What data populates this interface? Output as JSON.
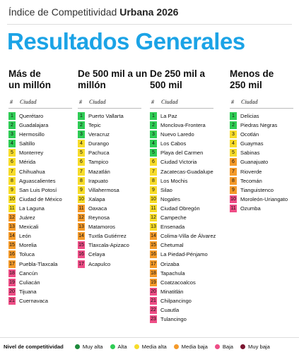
{
  "header": {
    "kicker": "Índice de Competitividad",
    "kicker_bold": "Urbana 2026",
    "title": "Resultados Generales"
  },
  "legend": {
    "title": "Nivel de competitividad",
    "items": [
      {
        "label": "Muy alta",
        "color": "#1e8a3c"
      },
      {
        "label": "Alta",
        "color": "#2fcc55"
      },
      {
        "label": "Media alta",
        "color": "#f7dc2a"
      },
      {
        "label": "Media baja",
        "color": "#f49a2a"
      },
      {
        "label": "Baja",
        "color": "#ee4d86"
      },
      {
        "label": "Muy baja",
        "color": "#7b1530"
      }
    ]
  },
  "columns": [
    {
      "heading": "Más de un millón",
      "rank_header": "#",
      "city_header": "Ciudad",
      "rows": [
        {
          "rank": 1,
          "city": "Querétaro",
          "level": 1
        },
        {
          "rank": 2,
          "city": "Guadalajara",
          "level": 1
        },
        {
          "rank": 3,
          "city": "Hermosillo",
          "level": 1
        },
        {
          "rank": 4,
          "city": "Saltillo",
          "level": 1
        },
        {
          "rank": 5,
          "city": "Monterrey",
          "level": 2
        },
        {
          "rank": 6,
          "city": "Mérida",
          "level": 2
        },
        {
          "rank": 7,
          "city": "Chihuahua",
          "level": 2
        },
        {
          "rank": 8,
          "city": "Aguascalientes",
          "level": 2
        },
        {
          "rank": 9,
          "city": "San Luis Potosí",
          "level": 2
        },
        {
          "rank": 10,
          "city": "Ciudad de México",
          "level": 2
        },
        {
          "rank": 11,
          "city": "La Laguna",
          "level": 2
        },
        {
          "rank": 12,
          "city": "Juárez",
          "level": 3
        },
        {
          "rank": 13,
          "city": "Mexicali",
          "level": 3
        },
        {
          "rank": 14,
          "city": "León",
          "level": 3
        },
        {
          "rank": 15,
          "city": "Morelia",
          "level": 3
        },
        {
          "rank": 16,
          "city": "Toluca",
          "level": 3
        },
        {
          "rank": 17,
          "city": "Puebla-Tlaxcala",
          "level": 3
        },
        {
          "rank": 18,
          "city": "Cancún",
          "level": 4
        },
        {
          "rank": 19,
          "city": "Culiacán",
          "level": 4
        },
        {
          "rank": 20,
          "city": "Tijuana",
          "level": 4
        },
        {
          "rank": 21,
          "city": "Cuernavaca",
          "level": 4
        }
      ]
    },
    {
      "heading": "De 500 mil a un millón",
      "rank_header": "#",
      "city_header": "Ciudad",
      "rows": [
        {
          "rank": 1,
          "city": "Puerto Vallarta",
          "level": 1
        },
        {
          "rank": 2,
          "city": "Tepic",
          "level": 1
        },
        {
          "rank": 3,
          "city": "Veracruz",
          "level": 1
        },
        {
          "rank": 4,
          "city": "Durango",
          "level": 2
        },
        {
          "rank": 5,
          "city": "Pachuca",
          "level": 2
        },
        {
          "rank": 6,
          "city": "Tampico",
          "level": 2
        },
        {
          "rank": 7,
          "city": "Mazatlán",
          "level": 2
        },
        {
          "rank": 8,
          "city": "Irapuato",
          "level": 2
        },
        {
          "rank": 9,
          "city": "Villahermosa",
          "level": 2
        },
        {
          "rank": 10,
          "city": "Xalapa",
          "level": 2
        },
        {
          "rank": 11,
          "city": "Oaxaca",
          "level": 3
        },
        {
          "rank": 12,
          "city": "Reynosa",
          "level": 3
        },
        {
          "rank": 13,
          "city": "Matamoros",
          "level": 3
        },
        {
          "rank": 14,
          "city": "Tuxtla Gutiérrez",
          "level": 3
        },
        {
          "rank": 15,
          "city": "Tlaxcala-Apizaco",
          "level": 4
        },
        {
          "rank": 16,
          "city": "Celaya",
          "level": 4
        },
        {
          "rank": 17,
          "city": "Acapulco",
          "level": 4
        }
      ]
    },
    {
      "heading": "De 250 mil a 500 mil",
      "rank_header": "#",
      "city_header": "Ciudad",
      "rows": [
        {
          "rank": 1,
          "city": "La Paz",
          "level": 1
        },
        {
          "rank": 2,
          "city": "Monclova-Frontera",
          "level": 1
        },
        {
          "rank": 3,
          "city": "Nuevo Laredo",
          "level": 1
        },
        {
          "rank": 4,
          "city": "Los Cabos",
          "level": 1
        },
        {
          "rank": 5,
          "city": "Playa del Carmen",
          "level": 1
        },
        {
          "rank": 6,
          "city": "Ciudad Victoria",
          "level": 2
        },
        {
          "rank": 7,
          "city": "Zacatecas-Guadalupe",
          "level": 2
        },
        {
          "rank": 8,
          "city": "Los Mochis",
          "level": 2
        },
        {
          "rank": 9,
          "city": "Silao",
          "level": 2
        },
        {
          "rank": 10,
          "city": "Nogales",
          "level": 2
        },
        {
          "rank": 11,
          "city": "Ciudad Obregón",
          "level": 2
        },
        {
          "rank": 12,
          "city": "Campeche",
          "level": 2
        },
        {
          "rank": 13,
          "city": "Ensenada",
          "level": 2
        },
        {
          "rank": 14,
          "city": "Colima-Villa de Álvarez",
          "level": 3
        },
        {
          "rank": 15,
          "city": "Chetumal",
          "level": 3
        },
        {
          "rank": 16,
          "city": "La Piedad-Pénjamo",
          "level": 3
        },
        {
          "rank": 17,
          "city": "Orizaba",
          "level": 3
        },
        {
          "rank": 18,
          "city": "Tapachula",
          "level": 3
        },
        {
          "rank": 19,
          "city": "Coatzacoalcos",
          "level": 3
        },
        {
          "rank": 20,
          "city": "Minatitlán",
          "level": 4
        },
        {
          "rank": 21,
          "city": "Chilpancingo",
          "level": 4
        },
        {
          "rank": 22,
          "city": "Cuautla",
          "level": 4
        },
        {
          "rank": 23,
          "city": "Tulancingo",
          "level": 4
        }
      ]
    },
    {
      "heading": "Menos de 250 mil",
      "rank_header": "#",
      "city_header": "Ciudad",
      "rows": [
        {
          "rank": 1,
          "city": "Delicias",
          "level": 1
        },
        {
          "rank": 2,
          "city": "Piedras Negras",
          "level": 1
        },
        {
          "rank": 3,
          "city": "Ocotlán",
          "level": 2
        },
        {
          "rank": 4,
          "city": "Guaymas",
          "level": 2
        },
        {
          "rank": 5,
          "city": "Sabinas",
          "level": 2
        },
        {
          "rank": 6,
          "city": "Guanajuato",
          "level": 3
        },
        {
          "rank": 7,
          "city": "Rioverde",
          "level": 3
        },
        {
          "rank": 8,
          "city": "Tecomán",
          "level": 3
        },
        {
          "rank": 9,
          "city": "Tianguistenco",
          "level": 3
        },
        {
          "rank": 10,
          "city": "Moroleón-Uriangato",
          "level": 4
        },
        {
          "rank": 11,
          "city": "Ozumba",
          "level": 4
        }
      ]
    }
  ]
}
